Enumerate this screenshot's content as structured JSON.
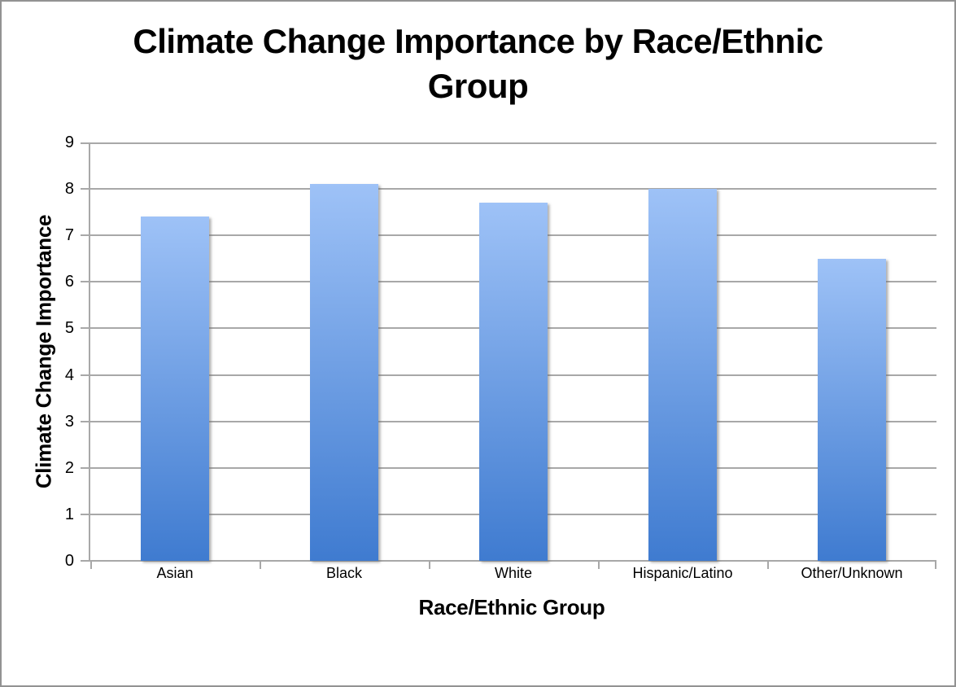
{
  "chart_data": {
    "type": "bar",
    "title": "Climate Change Importance by Race/Ethnic Group",
    "xlabel": "Race/Ethnic Group",
    "ylabel": "Climate Change Importance",
    "categories": [
      "Asian",
      "Black",
      "White",
      "Hispanic/Latino",
      "Other/Unknown"
    ],
    "values": [
      7.4,
      8.1,
      7.7,
      8.0,
      6.5
    ],
    "ylim": [
      0,
      9
    ],
    "yticks": [
      0,
      1,
      2,
      3,
      4,
      5,
      6,
      7,
      8,
      9
    ],
    "grid": true,
    "legend": false,
    "bar_color_top": "#9ec2f7",
    "bar_color_bottom": "#3f7bd0",
    "gridline_color": "#a8a8a8",
    "frame_border_color": "#929292"
  }
}
